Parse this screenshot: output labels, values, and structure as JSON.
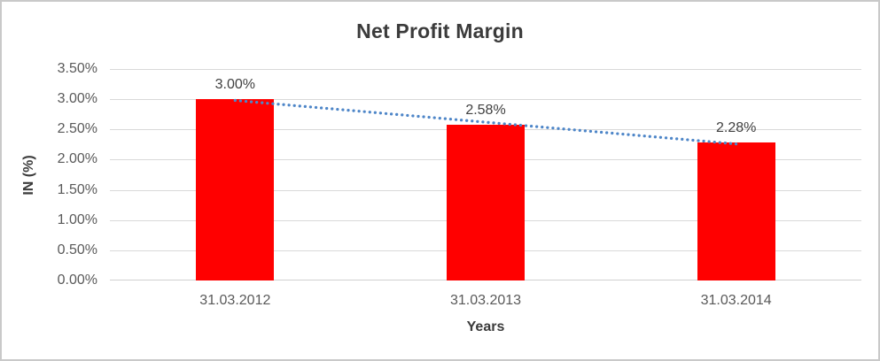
{
  "chart_data": {
    "type": "bar",
    "title": "Net Profit Margin",
    "xlabel": "Years",
    "ylabel": "IN (%)",
    "categories": [
      "31.03.2012",
      "31.03.2013",
      "31.03.2014"
    ],
    "values": [
      3.0,
      2.58,
      2.28
    ],
    "data_labels": [
      "3.00%",
      "2.58%",
      "2.28%"
    ],
    "ylim": [
      0,
      3.5
    ],
    "ytick_step": 0.5,
    "ytick_labels_top_to_bottom": [
      "3.50%",
      "3.00%",
      "2.50%",
      "2.00%",
      "1.50%",
      "1.00%",
      "0.50%",
      "0.00%"
    ],
    "grid": true,
    "legend": "none",
    "bar_color": "#FF0000",
    "trendline": {
      "type": "linear",
      "style": "dotted",
      "color": "#4E86C8",
      "start_value": 2.98,
      "end_value": 2.26
    }
  },
  "colors": {
    "frame_border": "#c9c9c9",
    "gridline": "#d9d9d9",
    "tick_text": "#595959",
    "title_text": "#3b3b3b",
    "data_label_text": "#404040",
    "background": "#ffffff"
  }
}
